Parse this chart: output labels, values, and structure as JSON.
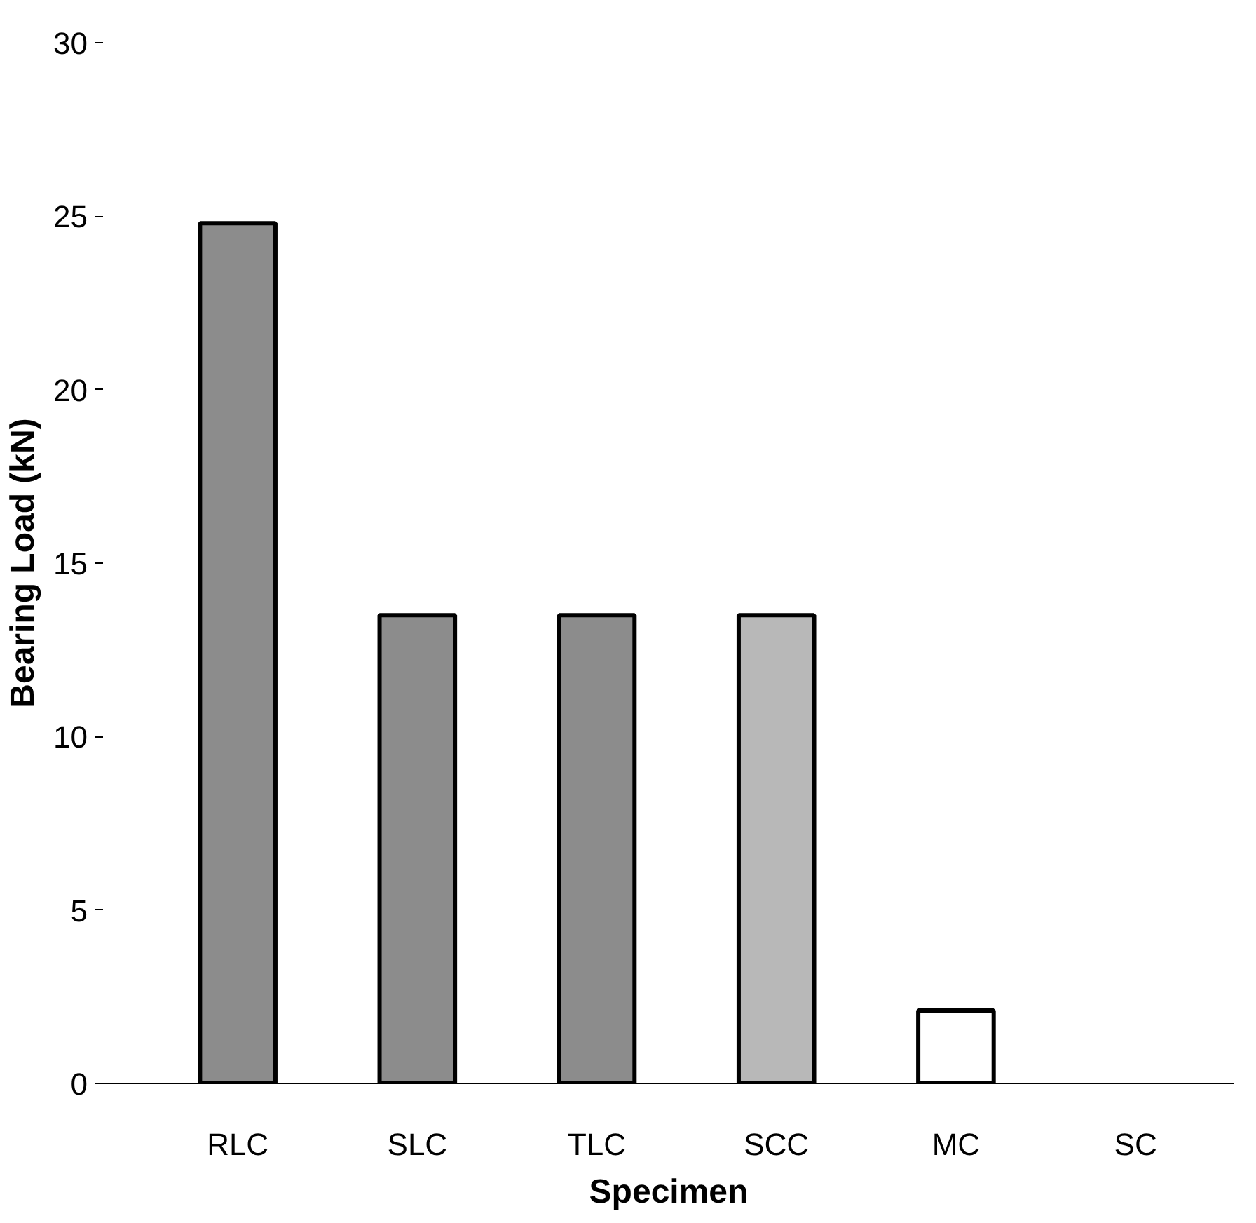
{
  "chart_data": {
    "type": "bar",
    "xlabel": "Specimen",
    "ylabel": "Bearing Load (kN)",
    "categories": [
      "RLC",
      "SLC",
      "TLC",
      "SCC",
      "MC",
      "SC"
    ],
    "values": [
      24.8,
      13.5,
      13.5,
      13.5,
      2.1,
      null
    ],
    "colors": [
      "#8c8c8c",
      "#8c8c8c",
      "#8c8c8c",
      "#b8b8b8",
      "#ffffff",
      "#ffffff"
    ],
    "ylim": [
      0,
      30
    ],
    "yticks": [
      0,
      5,
      10,
      15,
      20,
      25,
      30
    ],
    "grid": false
  }
}
